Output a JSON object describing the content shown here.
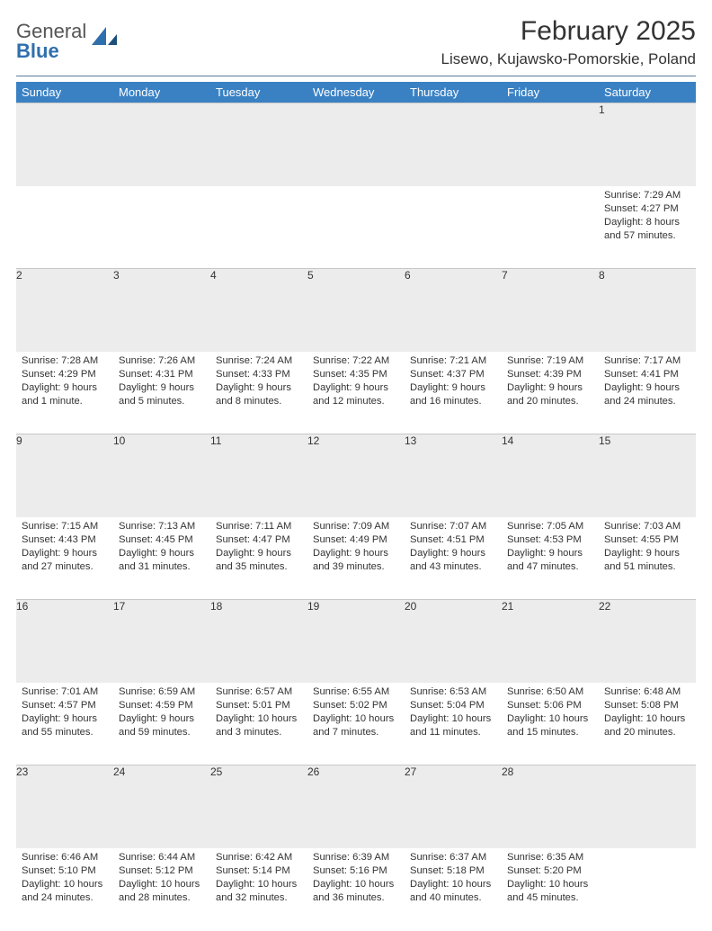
{
  "logo": {
    "text1": "General",
    "text2": "Blue"
  },
  "title": "February 2025",
  "location": "Lisewo, Kujawsko-Pomorskie, Poland",
  "colors": {
    "header_bg": "#3a81c4",
    "header_text": "#ffffff",
    "daynum_bg": "#ececec",
    "rule": "#5b7b9a",
    "logo_gray": "#555555",
    "logo_blue": "#2f6fad"
  },
  "weekdays": [
    "Sunday",
    "Monday",
    "Tuesday",
    "Wednesday",
    "Thursday",
    "Friday",
    "Saturday"
  ],
  "weeks": [
    {
      "nums": [
        "",
        "",
        "",
        "",
        "",
        "",
        "1"
      ],
      "cells": [
        null,
        null,
        null,
        null,
        null,
        null,
        {
          "sunrise": "Sunrise: 7:29 AM",
          "sunset": "Sunset: 4:27 PM",
          "day1": "Daylight: 8 hours",
          "day2": "and 57 minutes."
        }
      ]
    },
    {
      "nums": [
        "2",
        "3",
        "4",
        "5",
        "6",
        "7",
        "8"
      ],
      "cells": [
        {
          "sunrise": "Sunrise: 7:28 AM",
          "sunset": "Sunset: 4:29 PM",
          "day1": "Daylight: 9 hours",
          "day2": "and 1 minute."
        },
        {
          "sunrise": "Sunrise: 7:26 AM",
          "sunset": "Sunset: 4:31 PM",
          "day1": "Daylight: 9 hours",
          "day2": "and 5 minutes."
        },
        {
          "sunrise": "Sunrise: 7:24 AM",
          "sunset": "Sunset: 4:33 PM",
          "day1": "Daylight: 9 hours",
          "day2": "and 8 minutes."
        },
        {
          "sunrise": "Sunrise: 7:22 AM",
          "sunset": "Sunset: 4:35 PM",
          "day1": "Daylight: 9 hours",
          "day2": "and 12 minutes."
        },
        {
          "sunrise": "Sunrise: 7:21 AM",
          "sunset": "Sunset: 4:37 PM",
          "day1": "Daylight: 9 hours",
          "day2": "and 16 minutes."
        },
        {
          "sunrise": "Sunrise: 7:19 AM",
          "sunset": "Sunset: 4:39 PM",
          "day1": "Daylight: 9 hours",
          "day2": "and 20 minutes."
        },
        {
          "sunrise": "Sunrise: 7:17 AM",
          "sunset": "Sunset: 4:41 PM",
          "day1": "Daylight: 9 hours",
          "day2": "and 24 minutes."
        }
      ]
    },
    {
      "nums": [
        "9",
        "10",
        "11",
        "12",
        "13",
        "14",
        "15"
      ],
      "cells": [
        {
          "sunrise": "Sunrise: 7:15 AM",
          "sunset": "Sunset: 4:43 PM",
          "day1": "Daylight: 9 hours",
          "day2": "and 27 minutes."
        },
        {
          "sunrise": "Sunrise: 7:13 AM",
          "sunset": "Sunset: 4:45 PM",
          "day1": "Daylight: 9 hours",
          "day2": "and 31 minutes."
        },
        {
          "sunrise": "Sunrise: 7:11 AM",
          "sunset": "Sunset: 4:47 PM",
          "day1": "Daylight: 9 hours",
          "day2": "and 35 minutes."
        },
        {
          "sunrise": "Sunrise: 7:09 AM",
          "sunset": "Sunset: 4:49 PM",
          "day1": "Daylight: 9 hours",
          "day2": "and 39 minutes."
        },
        {
          "sunrise": "Sunrise: 7:07 AM",
          "sunset": "Sunset: 4:51 PM",
          "day1": "Daylight: 9 hours",
          "day2": "and 43 minutes."
        },
        {
          "sunrise": "Sunrise: 7:05 AM",
          "sunset": "Sunset: 4:53 PM",
          "day1": "Daylight: 9 hours",
          "day2": "and 47 minutes."
        },
        {
          "sunrise": "Sunrise: 7:03 AM",
          "sunset": "Sunset: 4:55 PM",
          "day1": "Daylight: 9 hours",
          "day2": "and 51 minutes."
        }
      ]
    },
    {
      "nums": [
        "16",
        "17",
        "18",
        "19",
        "20",
        "21",
        "22"
      ],
      "cells": [
        {
          "sunrise": "Sunrise: 7:01 AM",
          "sunset": "Sunset: 4:57 PM",
          "day1": "Daylight: 9 hours",
          "day2": "and 55 minutes."
        },
        {
          "sunrise": "Sunrise: 6:59 AM",
          "sunset": "Sunset: 4:59 PM",
          "day1": "Daylight: 9 hours",
          "day2": "and 59 minutes."
        },
        {
          "sunrise": "Sunrise: 6:57 AM",
          "sunset": "Sunset: 5:01 PM",
          "day1": "Daylight: 10 hours",
          "day2": "and 3 minutes."
        },
        {
          "sunrise": "Sunrise: 6:55 AM",
          "sunset": "Sunset: 5:02 PM",
          "day1": "Daylight: 10 hours",
          "day2": "and 7 minutes."
        },
        {
          "sunrise": "Sunrise: 6:53 AM",
          "sunset": "Sunset: 5:04 PM",
          "day1": "Daylight: 10 hours",
          "day2": "and 11 minutes."
        },
        {
          "sunrise": "Sunrise: 6:50 AM",
          "sunset": "Sunset: 5:06 PM",
          "day1": "Daylight: 10 hours",
          "day2": "and 15 minutes."
        },
        {
          "sunrise": "Sunrise: 6:48 AM",
          "sunset": "Sunset: 5:08 PM",
          "day1": "Daylight: 10 hours",
          "day2": "and 20 minutes."
        }
      ]
    },
    {
      "nums": [
        "23",
        "24",
        "25",
        "26",
        "27",
        "28",
        ""
      ],
      "cells": [
        {
          "sunrise": "Sunrise: 6:46 AM",
          "sunset": "Sunset: 5:10 PM",
          "day1": "Daylight: 10 hours",
          "day2": "and 24 minutes."
        },
        {
          "sunrise": "Sunrise: 6:44 AM",
          "sunset": "Sunset: 5:12 PM",
          "day1": "Daylight: 10 hours",
          "day2": "and 28 minutes."
        },
        {
          "sunrise": "Sunrise: 6:42 AM",
          "sunset": "Sunset: 5:14 PM",
          "day1": "Daylight: 10 hours",
          "day2": "and 32 minutes."
        },
        {
          "sunrise": "Sunrise: 6:39 AM",
          "sunset": "Sunset: 5:16 PM",
          "day1": "Daylight: 10 hours",
          "day2": "and 36 minutes."
        },
        {
          "sunrise": "Sunrise: 6:37 AM",
          "sunset": "Sunset: 5:18 PM",
          "day1": "Daylight: 10 hours",
          "day2": "and 40 minutes."
        },
        {
          "sunrise": "Sunrise: 6:35 AM",
          "sunset": "Sunset: 5:20 PM",
          "day1": "Daylight: 10 hours",
          "day2": "and 45 minutes."
        },
        null
      ]
    }
  ]
}
